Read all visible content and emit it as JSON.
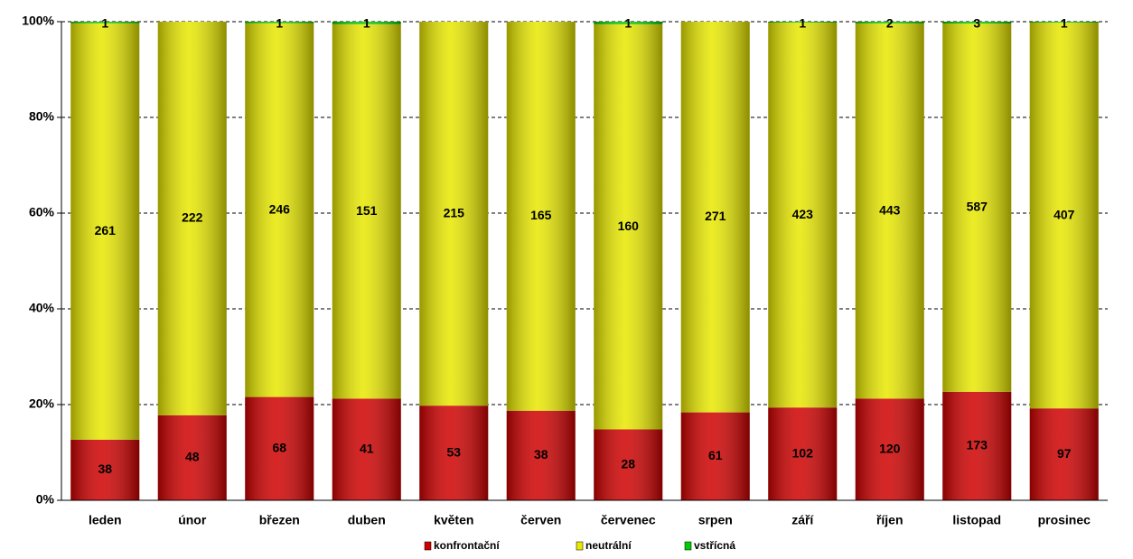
{
  "chart_data": {
    "type": "bar",
    "stacking": "percent",
    "categories": [
      "leden",
      "únor",
      "březen",
      "duben",
      "květen",
      "červen",
      "červenec",
      "srpen",
      "září",
      "říjen",
      "listopad",
      "prosinec"
    ],
    "series": [
      {
        "name": "konfrontační",
        "color": "#d00000",
        "values": [
          38,
          48,
          68,
          41,
          53,
          38,
          28,
          61,
          102,
          120,
          173,
          97
        ]
      },
      {
        "name": "neutrální",
        "color": "#e8e800",
        "values": [
          261,
          222,
          246,
          151,
          215,
          165,
          160,
          271,
          423,
          443,
          587,
          407
        ]
      },
      {
        "name": "vstřícná",
        "color": "#00cc00",
        "values": [
          1,
          0,
          1,
          1,
          0,
          0,
          1,
          0,
          1,
          2,
          3,
          1
        ]
      }
    ],
    "ylim": [
      0,
      100
    ],
    "yticks": [
      {
        "value": 0,
        "label": "0%"
      },
      {
        "value": 20,
        "label": "20%"
      },
      {
        "value": 40,
        "label": "40%"
      },
      {
        "value": 60,
        "label": "60%"
      },
      {
        "value": 80,
        "label": "80%"
      },
      {
        "value": 100,
        "label": "100%"
      }
    ],
    "grid": true,
    "legend": "bottom"
  }
}
